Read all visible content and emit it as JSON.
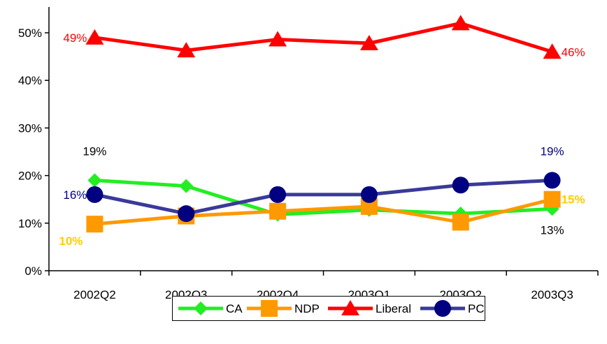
{
  "chart_data": {
    "type": "line",
    "categories": [
      "2002Q2",
      "2002Q3",
      "2002Q4",
      "2003Q1",
      "2003Q2",
      "2003Q3"
    ],
    "yticks": [
      "0%",
      "10%",
      "20%",
      "30%",
      "40%",
      "50%"
    ],
    "ylim": [
      0,
      56
    ],
    "series": [
      {
        "name": "CA",
        "color": "#22ee22",
        "marker": "diamond",
        "values": [
          19,
          17.8,
          11.8,
          12.8,
          12,
          13
        ]
      },
      {
        "name": "NDP",
        "color": "#ff9900",
        "marker": "square",
        "values": [
          9.8,
          11.5,
          12.5,
          13.5,
          10.2,
          15
        ]
      },
      {
        "name": "Liberal",
        "color": "#ff0000",
        "marker": "triangle",
        "values": [
          49,
          46.3,
          48.6,
          47.8,
          52,
          46
        ]
      },
      {
        "name": "PC",
        "color": "#000080",
        "line_color": "#3a3a99",
        "marker": "circle",
        "values": [
          16,
          12,
          16,
          16,
          18,
          19
        ]
      }
    ],
    "annotations": [
      {
        "text": "49%",
        "color": "#ff0000",
        "series": "Liberal",
        "index": 0,
        "side": "left"
      },
      {
        "text": "46%",
        "color": "#ff0000",
        "series": "Liberal",
        "index": 5,
        "side": "right"
      },
      {
        "text": "19%",
        "color": "#000000",
        "series": "CA",
        "index": 0,
        "side": "above"
      },
      {
        "text": "16%",
        "color": "#000080",
        "series": "PC",
        "index": 0,
        "side": "left"
      },
      {
        "text": "10%",
        "color": "#ffcc00",
        "series": "NDP",
        "index": 0,
        "side": "below-left",
        "bold": true
      },
      {
        "text": "19%",
        "color": "#000080",
        "series": "PC",
        "index": 5,
        "side": "above"
      },
      {
        "text": "15%",
        "color": "#ffcc00",
        "series": "NDP",
        "index": 5,
        "side": "right",
        "bold": true
      },
      {
        "text": "13%",
        "color": "#000000",
        "series": "CA",
        "index": 5,
        "side": "below"
      }
    ],
    "legend": {
      "position": "bottom",
      "items": [
        "CA",
        "NDP",
        "Liberal",
        "PC"
      ]
    }
  }
}
